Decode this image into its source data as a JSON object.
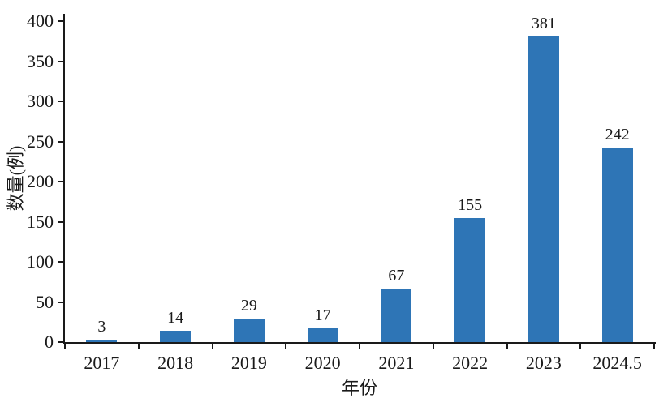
{
  "chart_data": {
    "type": "bar",
    "title": "",
    "xlabel": "年份",
    "ylabel": "数量(例)",
    "categories": [
      "2017",
      "2018",
      "2019",
      "2020",
      "2021",
      "2022",
      "2023",
      "2024.5"
    ],
    "values": [
      3,
      14,
      29,
      17,
      67,
      155,
      381,
      242
    ],
    "value_labels": [
      "3",
      "14",
      "29",
      "17",
      "67",
      "155",
      "381",
      "242"
    ],
    "ylim": [
      0,
      400
    ],
    "yticks": [
      0,
      50,
      100,
      150,
      200,
      250,
      300,
      350,
      400
    ],
    "grid": false,
    "legend": null,
    "bar_color": "#2E75B6",
    "axis_color": "#1A1A1A",
    "text_color": "#1A1A1A",
    "background_color": "#FFFFFF"
  }
}
